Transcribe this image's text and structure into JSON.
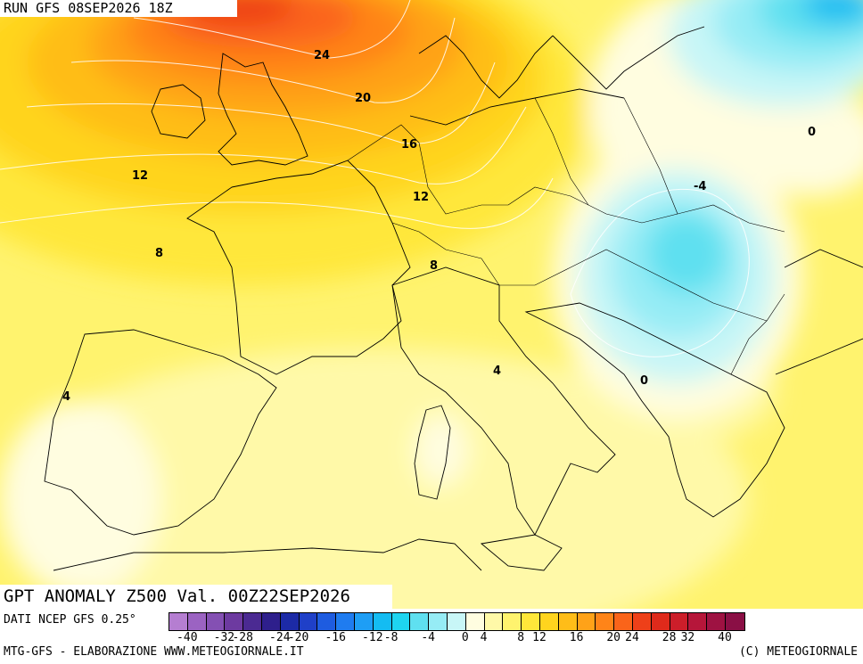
{
  "run_title": "RUN GFS 08SEP2026 18Z",
  "map_title": "GPT ANOMALY Z500 Val. 00Z22SEP2026",
  "source": "DATI NCEP GFS 0.25°",
  "credit_left": "MTG-GFS - ELABORAZIONE WWW.METEOGIORNALE.IT",
  "credit_right": "(C) METEOGIORNALE",
  "contour_labels": [
    {
      "text": "24"
    },
    {
      "text": "20"
    },
    {
      "text": "16"
    },
    {
      "text": "12"
    },
    {
      "text": "12"
    },
    {
      "text": "8"
    },
    {
      "text": "8"
    },
    {
      "text": "4"
    },
    {
      "text": "4"
    },
    {
      "text": "0"
    },
    {
      "text": "-4"
    },
    {
      "text": "0"
    }
  ],
  "scale": {
    "colors": [
      "#b57ed1",
      "#9b63c2",
      "#8450b3",
      "#6d3aa0",
      "#4b2a92",
      "#2e1f8c",
      "#1c2aa6",
      "#1f40c8",
      "#1e5ce0",
      "#1f7cf0",
      "#1e9ef5",
      "#14bcf2",
      "#1ed4f0",
      "#5fe0f0",
      "#96ecf5",
      "#c8f6f7",
      "#fffde0",
      "#fff9a8",
      "#fff36e",
      "#ffe73a",
      "#ffd41e",
      "#ffbd18",
      "#ffa218",
      "#ff8418",
      "#fa641a",
      "#ee4019",
      "#df2a1b",
      "#cc1e2a",
      "#b6163a",
      "#9e1242",
      "#8a0f45"
    ],
    "labels": [
      "-40",
      "-32",
      "-28",
      "-24",
      "-20",
      "-16",
      "-12",
      "-8",
      "-4",
      "0",
      "4",
      "8",
      "12",
      "16",
      "20",
      "24",
      "28",
      "32",
      "40"
    ]
  }
}
